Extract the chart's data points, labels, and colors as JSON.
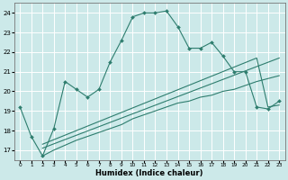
{
  "xlabel": "Humidex (Indice chaleur)",
  "background_color": "#cce9e9",
  "grid_color": "#ffffff",
  "line_color": "#2e7d6e",
  "xlim": [
    -0.5,
    23.5
  ],
  "ylim": [
    16.5,
    24.5
  ],
  "xticks": [
    0,
    1,
    2,
    3,
    4,
    5,
    6,
    7,
    8,
    9,
    10,
    11,
    12,
    13,
    14,
    15,
    16,
    17,
    18,
    19,
    20,
    21,
    22,
    23
  ],
  "yticks": [
    17,
    18,
    19,
    20,
    21,
    22,
    23,
    24
  ],
  "line1_x": [
    0,
    1,
    2,
    3,
    4,
    5,
    6,
    7,
    8,
    9,
    10,
    11,
    12,
    13,
    14,
    15,
    16,
    17,
    18,
    19,
    20,
    21,
    22,
    23
  ],
  "line1_y": [
    19.2,
    17.7,
    16.7,
    18.1,
    20.5,
    20.1,
    19.7,
    20.1,
    21.5,
    22.6,
    23.8,
    24.0,
    24.0,
    24.1,
    23.3,
    22.2,
    22.2,
    22.5,
    21.8,
    21.0,
    21.0,
    19.2,
    19.1,
    19.5
  ],
  "line2_x": [
    2,
    3,
    5,
    9,
    10,
    11,
    12,
    13,
    14,
    15,
    16,
    17,
    18,
    19,
    20,
    21,
    22,
    23
  ],
  "line2_y": [
    16.7,
    17.0,
    17.5,
    18.3,
    18.6,
    18.8,
    19.0,
    19.2,
    19.4,
    19.5,
    19.7,
    19.8,
    20.0,
    20.1,
    20.3,
    20.5,
    20.65,
    20.8
  ],
  "line3_x": [
    2,
    23
  ],
  "line3_y": [
    17.1,
    21.7
  ],
  "line4_x": [
    2,
    21,
    22,
    23
  ],
  "line4_y": [
    17.3,
    21.7,
    19.2,
    19.3
  ]
}
